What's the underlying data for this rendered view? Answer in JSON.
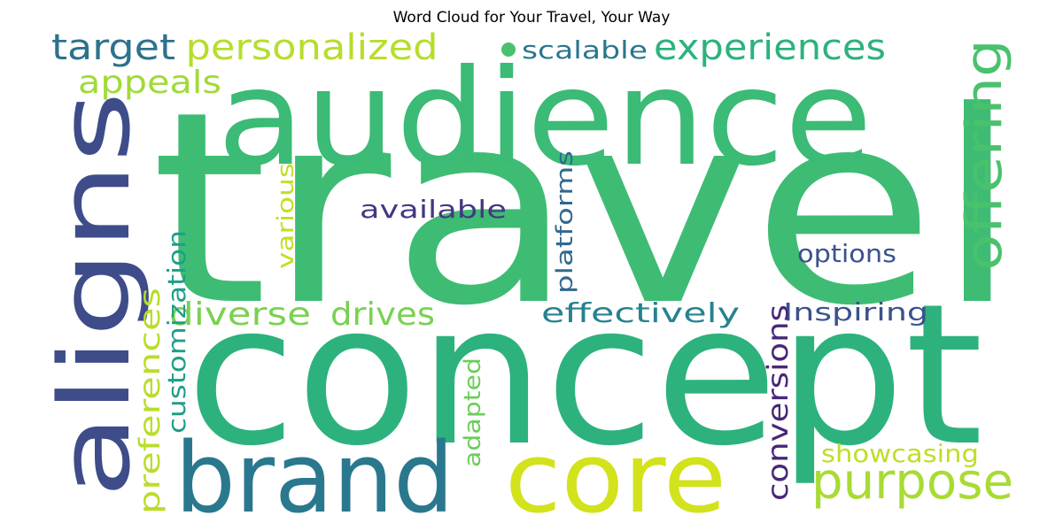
{
  "title": "Word Cloud for Your Travel, Your Way",
  "words": {
    "travel": {
      "text": "travel",
      "color": "#3ebc74"
    },
    "concept": {
      "text": "concept",
      "color": "#2db27d"
    },
    "audience": {
      "text": "audience",
      "color": "#3bbb75"
    },
    "aligns": {
      "text": "aligns",
      "color": "#3e4c8a"
    },
    "brand": {
      "text": "brand",
      "color": "#2a788e"
    },
    "core": {
      "text": "core",
      "color": "#d2e21b"
    },
    "purpose": {
      "text": "purpose",
      "color": "#a8db34"
    },
    "offering": {
      "text": "offering",
      "color": "#4ac16d"
    },
    "personalized": {
      "text": "personalized",
      "color": "#b5de2b"
    },
    "experiences": {
      "text": "experiences",
      "color": "#2db27d"
    },
    "target": {
      "text": "target",
      "color": "#2c728e"
    },
    "appeals": {
      "text": "appeals",
      "color": "#a0da39"
    },
    "scalable": {
      "text": "scalable",
      "color": "#2a768e"
    },
    "dot": {
      "text": "●",
      "color": "#4ac16d"
    },
    "available": {
      "text": "available",
      "color": "#453781"
    },
    "options": {
      "text": "options",
      "color": "#3b528b"
    },
    "effectively": {
      "text": "effectively",
      "color": "#26828e"
    },
    "Inspiring": {
      "text": "Inspiring",
      "color": "#3b528b"
    },
    "diverse": {
      "text": "diverse",
      "color": "#7ad151"
    },
    "drives": {
      "text": "drives",
      "color": "#7ad151"
    },
    "showcasing": {
      "text": "showcasing",
      "color": "#bddf26"
    },
    "conversions": {
      "text": "conversions",
      "color": "#482878"
    },
    "platforms": {
      "text": "platforms",
      "color": "#31688e"
    },
    "various": {
      "text": "various",
      "color": "#c2df23"
    },
    "customization": {
      "text": "customization",
      "color": "#1f9e89"
    },
    "preferences": {
      "text": "preferences",
      "color": "#b8de29"
    },
    "adapted": {
      "text": "adapted",
      "color": "#6ccd5a"
    }
  }
}
